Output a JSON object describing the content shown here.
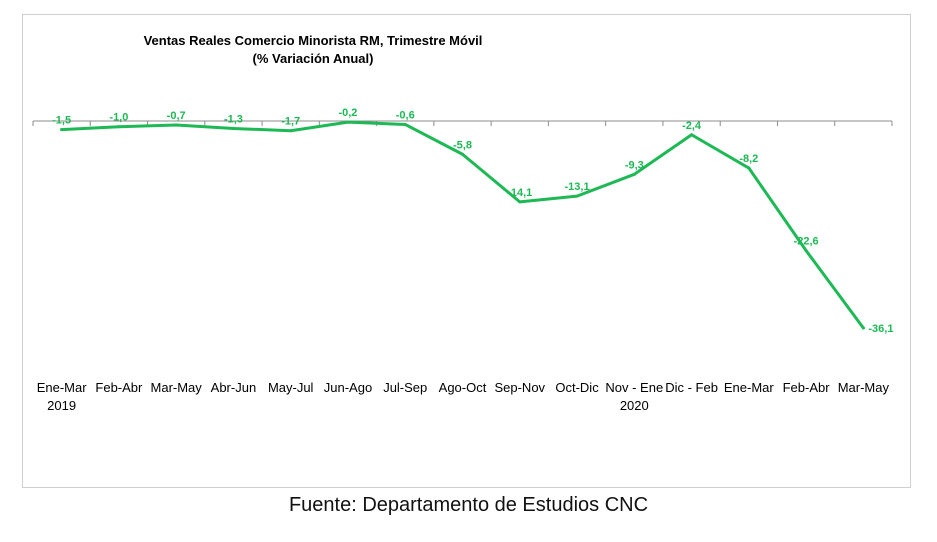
{
  "chart_data": {
    "type": "line",
    "title": "Ventas Reales Comercio Minorista RM, Trimestre Móvil",
    "subtitle": "(% Variación Anual)",
    "categories": [
      "Ene-Mar",
      "Feb-Abr",
      "Mar-May",
      "Abr-Jun",
      "May-Jul",
      "Jun-Ago",
      "Jul-Sep",
      "Ago-Oct",
      "Sep-Nov",
      "Oct-Dic",
      "Nov - Ene",
      "Dic - Feb",
      "Ene-Mar",
      "Feb-Abr",
      "Mar-May"
    ],
    "year_labels": [
      {
        "category_index": 0,
        "text": "2019"
      },
      {
        "category_index": 10,
        "text": "2020"
      }
    ],
    "series": [
      {
        "values": [
          -1.5,
          -1.0,
          -0.7,
          -1.3,
          -1.7,
          -0.2,
          -0.6,
          -5.8,
          -14.1,
          -13.1,
          -9.3,
          -2.4,
          -8.2,
          -22.6,
          -36.1
        ],
        "data_labels": [
          "-1,5",
          "-1,0",
          "-0,7",
          "-1,3",
          "-1,7",
          "-0,2",
          "-0,6",
          "-5,8",
          "-14,1",
          "-13,1",
          "-9,3",
          "-2,4",
          "-8,2",
          "-22,6",
          "-36,1"
        ],
        "color": "#1db954"
      }
    ],
    "ylim": [
      -40,
      0
    ],
    "axis_color": "#8c8c8c",
    "grid": false,
    "legend": "none"
  },
  "source": "Fuente: Departamento de Estudios CNC"
}
